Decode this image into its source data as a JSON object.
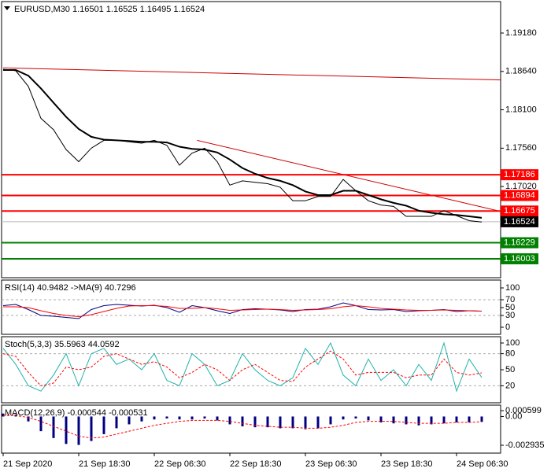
{
  "chart_data": [
    {
      "type": "line",
      "title": "EURUSD,M30  1.16501 1.16525 1.16495 1.16524",
      "categories": [
        "21 Sep 2020",
        null,
        null,
        null,
        null,
        null,
        "21 Sep 18:30",
        null,
        null,
        null,
        null,
        null,
        "22 Sep 06:30",
        null,
        null,
        null,
        null,
        null,
        "22 Sep 18:30",
        null,
        null,
        null,
        null,
        null,
        "23 Sep 06:30",
        null,
        null,
        null,
        null,
        null,
        "23 Sep 18:30",
        null,
        null,
        null,
        null,
        null,
        "24 Sep 06:30",
        null,
        null
      ],
      "series": [
        {
          "color": "#000000",
          "style": "solid",
          "values": [
            1.1867,
            1.1865,
            1.1843,
            1.1798,
            1.1782,
            1.1754,
            1.1737,
            1.1756,
            1.1767,
            1.1767,
            1.1765,
            1.1763,
            1.1767,
            1.176,
            1.1732,
            1.1749,
            1.1756,
            1.1737,
            1.1704,
            1.171,
            1.1708,
            1.1706,
            1.1701,
            1.1682,
            1.1682,
            1.1688,
            1.1688,
            1.1712,
            1.1696,
            1.1682,
            1.1676,
            1.1674,
            1.166,
            1.166,
            1.166,
            1.1668,
            1.1661,
            1.1654,
            1.1652
          ]
        },
        {
          "color": "#000000",
          "style": "thick",
          "values": [
            1.1866,
            1.1866,
            1.1858,
            1.184,
            1.182,
            1.18,
            1.1783,
            1.1772,
            1.1768,
            1.1767,
            1.1766,
            1.1765,
            1.1765,
            1.1764,
            1.1758,
            1.1755,
            1.1754,
            1.175,
            1.174,
            1.1728,
            1.172,
            1.1714,
            1.171,
            1.1704,
            1.1695,
            1.169,
            1.169,
            1.1696,
            1.1696,
            1.169,
            1.1684,
            1.1679,
            1.1675,
            1.1668,
            1.1665,
            1.1663,
            1.1662,
            1.166,
            1.1658
          ]
        }
      ],
      "ylim": [
        1.15737,
        1.19623
      ],
      "yticks": [
        {
          "value": 1.1918,
          "label": "1.19180"
        },
        {
          "value": 1.1864,
          "label": "1.18640"
        },
        {
          "value": 1.181,
          "label": "1.18100"
        },
        {
          "value": 1.1756,
          "label": "1.17560"
        },
        {
          "value": 1.1702,
          "label": "1.17020"
        }
      ],
      "levels": [
        {
          "value": 1.17186,
          "label": "1.17186",
          "color": "#ff0000"
        },
        {
          "value": 1.16894,
          "label": "1.16894",
          "color": "#ff0000"
        },
        {
          "value": 1.16675,
          "label": "1.16675",
          "color": "#ff0000"
        },
        {
          "value": 1.16524,
          "label": "1.16524",
          "color": "#000000"
        },
        {
          "value": 1.16229,
          "label": "1.16229",
          "color": "#008000"
        },
        {
          "value": 1.16003,
          "label": "1.16003",
          "color": "#008000"
        }
      ],
      "trendlines": [
        {
          "x": [
            0,
            39.5
          ],
          "y": [
            1.1869,
            1.1852
          ],
          "color": "#cc0000"
        },
        {
          "x": [
            15.4,
            39.5
          ],
          "y": [
            1.1767,
            1.1667
          ],
          "color": "#cc0000"
        }
      ]
    },
    {
      "type": "line",
      "title": "RSI(14) 40.9482  ->MA(9) 40.7296",
      "series": [
        {
          "color": "#000080",
          "style": "solid",
          "values": [
            55,
            58,
            45,
            30,
            28,
            25,
            22,
            45,
            55,
            58,
            56,
            54,
            56,
            50,
            38,
            55,
            50,
            42,
            35,
            45,
            47,
            46,
            44,
            40,
            45,
            46,
            52,
            62,
            55,
            45,
            44,
            45,
            40,
            42,
            43,
            45,
            40,
            42,
            40.9482
          ]
        },
        {
          "color": "#ff0000",
          "style": "solid",
          "values": [
            52,
            52,
            50,
            42,
            35,
            30,
            27,
            32,
            40,
            48,
            54,
            55,
            55,
            53,
            48,
            48,
            50,
            47,
            43,
            44,
            45,
            46,
            45,
            43,
            44,
            45,
            47,
            52,
            55,
            52,
            48,
            46,
            44,
            43,
            43,
            44,
            43,
            42,
            40.7296
          ]
        }
      ],
      "ylim": [
        -18,
        120
      ],
      "yticks": [
        100,
        70,
        50,
        30,
        0
      ],
      "dashed_levels": [
        70,
        30
      ]
    },
    {
      "type": "line",
      "title": "Stoch(5,3,3) 35.5963 44.0592",
      "series": [
        {
          "color": "#20b2aa",
          "style": "solid",
          "values": [
            90,
            60,
            20,
            10,
            40,
            80,
            20,
            80,
            90,
            60,
            70,
            50,
            80,
            30,
            20,
            80,
            60,
            20,
            30,
            80,
            50,
            30,
            20,
            35,
            90,
            60,
            100,
            40,
            20,
            70,
            30,
            50,
            20,
            60,
            30,
            100,
            10,
            70,
            35.5963
          ]
        },
        {
          "color": "#ff0000",
          "style": "dashed",
          "values": [
            80,
            75,
            45,
            20,
            25,
            55,
            50,
            55,
            75,
            80,
            70,
            60,
            65,
            55,
            35,
            45,
            60,
            50,
            30,
            50,
            60,
            45,
            30,
            28,
            55,
            70,
            85,
            70,
            40,
            45,
            45,
            45,
            35,
            40,
            40,
            70,
            45,
            40,
            44.0592
          ]
        }
      ],
      "ylim": [
        -11.8,
        111.8
      ],
      "yticks": [
        100,
        80,
        50,
        20
      ],
      "dashed_levels": [
        80,
        20
      ]
    },
    {
      "type": "line",
      "title": "MACD(12,26,9) -0.000544 -0.000531",
      "series": [
        {
          "color": "#000080",
          "style": "histogram",
          "values": [
            0.0003,
            0.0002,
            -0.0005,
            -0.0015,
            -0.0022,
            -0.0028,
            -0.0029,
            -0.0025,
            -0.0018,
            -0.0012,
            -0.0008,
            -0.0005,
            -0.0003,
            -0.0002,
            -0.0003,
            -0.0003,
            -0.0002,
            -0.0004,
            -0.0008,
            -0.001,
            -0.0011,
            -0.0011,
            -0.0012,
            -0.0012,
            -0.0013,
            -0.0012,
            -0.0008,
            -0.0003,
            -0.0002,
            -0.0004,
            -0.0006,
            -0.0007,
            -0.0008,
            -0.0009,
            -0.0008,
            -0.0007,
            -0.0006,
            -0.0006,
            -0.000544
          ]
        },
        {
          "color": "#ff0000",
          "style": "dashed",
          "values": [
            0.0001,
            0.0001,
            -0.0001,
            -0.0005,
            -0.001,
            -0.0015,
            -0.002,
            -0.0022,
            -0.0021,
            -0.0018,
            -0.0015,
            -0.0012,
            -0.0009,
            -0.0007,
            -0.0005,
            -0.0004,
            -0.0004,
            -0.0004,
            -0.0005,
            -0.0007,
            -0.0009,
            -0.001,
            -0.0011,
            -0.0011,
            -0.0012,
            -0.0012,
            -0.0011,
            -0.0009,
            -0.0006,
            -0.0005,
            -0.0005,
            -0.0005,
            -0.0006,
            -0.0007,
            -0.0007,
            -0.0007,
            -0.0006,
            -0.0006,
            -0.000531
          ]
        }
      ],
      "ylim": [
        -0.003738,
        0.001161
      ],
      "yticks": [
        {
          "value": 0.000599,
          "label": "0.000599"
        },
        {
          "value": 0,
          "label": "0.00"
        },
        {
          "value": -0.002935,
          "label": "-0.002935"
        }
      ]
    }
  ]
}
